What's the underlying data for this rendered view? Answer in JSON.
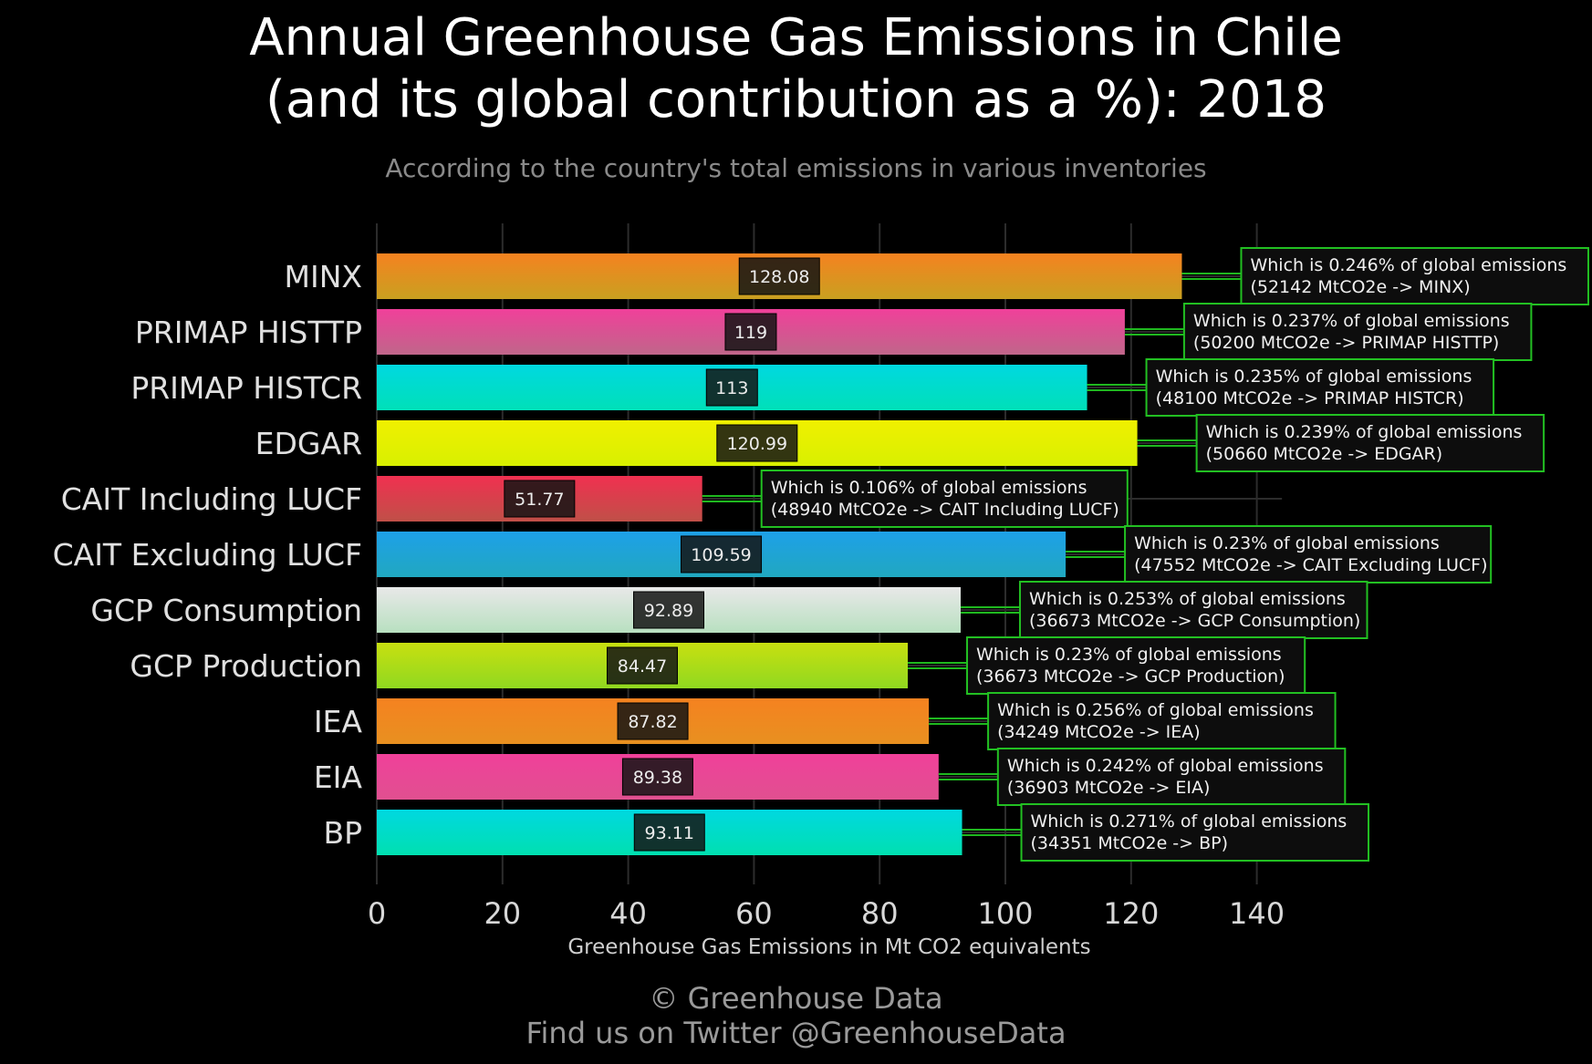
{
  "title_line1": "Annual Greenhouse Gas Emissions in Chile",
  "title_line2": "(and its global contribution as a %): 2018",
  "subtitle": "According to the country's total emissions in various inventories",
  "footer_line1": "© Greenhouse Data",
  "footer_line2": "Find us on Twitter @GreenhouseData",
  "chart_data": {
    "type": "bar",
    "orientation": "horizontal",
    "xlabel": "Greenhouse Gas Emissions in Mt CO2 equivalents",
    "ylabel": "",
    "xlim": [
      0,
      145
    ],
    "xticks": [
      0,
      20,
      40,
      60,
      80,
      100,
      120,
      140
    ],
    "grid": true,
    "categories": [
      "MINX",
      "PRIMAP HISTTP",
      "PRIMAP HISTCR",
      "EDGAR",
      "CAIT Including LUCF",
      "CAIT Excluding LUCF",
      "GCP Consumption",
      "GCP Production",
      "IEA",
      "EIA",
      "BP"
    ],
    "values": [
      128.08,
      119,
      113,
      120.99,
      51.77,
      109.59,
      92.89,
      84.47,
      87.82,
      89.38,
      93.11
    ],
    "value_labels": [
      "128.08",
      "119",
      "113",
      "120.99",
      "51.77",
      "109.59",
      "92.89",
      "84.47",
      "87.82",
      "89.38",
      "93.11"
    ],
    "annotations": [
      {
        "line1": "Which is 0.246% of global emissions",
        "line2": "(52142 MtCO2e -> MINX)"
      },
      {
        "line1": "Which is 0.237% of global emissions",
        "line2": "(50200 MtCO2e -> PRIMAP HISTTP)"
      },
      {
        "line1": "Which is 0.235% of global emissions",
        "line2": "(48100 MtCO2e -> PRIMAP HISTCR)"
      },
      {
        "line1": "Which is 0.239% of global emissions",
        "line2": "(50660 MtCO2e -> EDGAR)"
      },
      {
        "line1": "Which is 0.106% of global emissions",
        "line2": "(48940 MtCO2e -> CAIT Including LUCF)"
      },
      {
        "line1": "Which is 0.23% of global emissions",
        "line2": "(47552 MtCO2e -> CAIT Excluding LUCF)"
      },
      {
        "line1": "Which is 0.253% of global emissions",
        "line2": "(36673 MtCO2e -> GCP Consumption)"
      },
      {
        "line1": "Which is 0.23% of global emissions",
        "line2": "(36673 MtCO2e -> GCP Production)"
      },
      {
        "line1": "Which is 0.256% of global emissions",
        "line2": "(34249 MtCO2e -> IEA)"
      },
      {
        "line1": "Which is 0.242% of global emissions",
        "line2": "(36903 MtCO2e -> EIA)"
      },
      {
        "line1": "Which is 0.271% of global emissions",
        "line2": "(34351 MtCO2e -> BP)"
      }
    ],
    "colors": [
      [
        "#f58220",
        "#c9a020"
      ],
      [
        "#f0409a",
        "#c0668a"
      ],
      [
        "#00d8e0",
        "#00e0b8"
      ],
      [
        "#f0f000",
        "#d8f000"
      ],
      [
        "#f03050",
        "#c05048"
      ],
      [
        "#1ea0e8",
        "#20a8c0"
      ],
      [
        "#e8e8e8",
        "#b8e0c0"
      ],
      [
        "#c8e010",
        "#90d820"
      ],
      [
        "#f58220",
        "#e89020"
      ],
      [
        "#f0409a",
        "#e05090"
      ],
      [
        "#00d8e0",
        "#00e0b0"
      ]
    ],
    "annotation_border_color": "#22c022"
  }
}
